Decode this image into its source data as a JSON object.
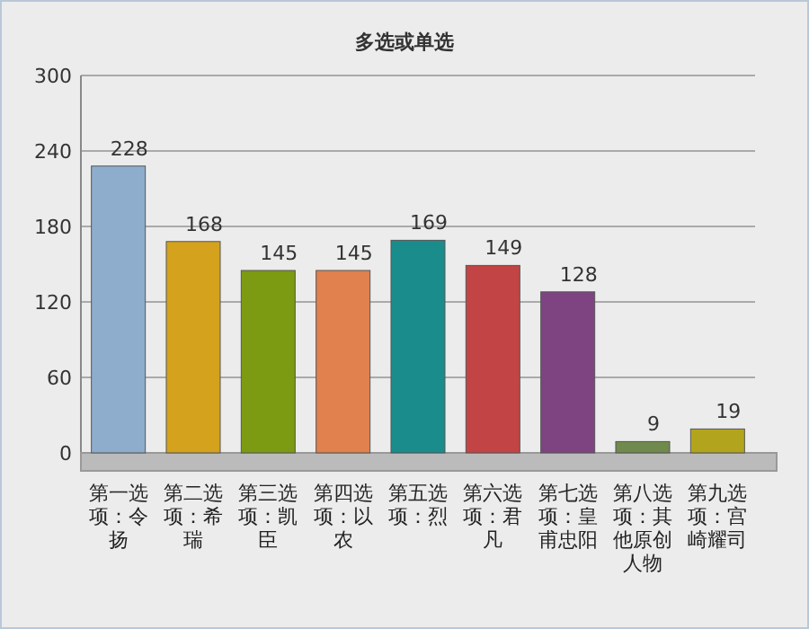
{
  "chart_data": {
    "type": "bar",
    "title": "多选或单选",
    "categories": [
      "第一选项：令扬",
      "第二选项：希瑞",
      "第三选项：凯臣",
      "第四选项：以农",
      "第五选项：烈",
      "第六选项：君凡",
      "第七选项：皇甫忠阳",
      "第八选项：其他原创人物",
      "第九选项：宫崎耀司"
    ],
    "values": [
      228,
      168,
      145,
      145,
      169,
      149,
      128,
      9,
      19
    ],
    "colors": [
      "#8eadcc",
      "#d4a21c",
      "#7c9a12",
      "#e0814e",
      "#1a8c8c",
      "#c24444",
      "#7e4482",
      "#6f8a4c",
      "#b3a41e"
    ],
    "ylim": [
      0,
      300
    ],
    "yticks": [
      0,
      60,
      120,
      180,
      240,
      300
    ],
    "grid": "y",
    "data_labels": true
  }
}
